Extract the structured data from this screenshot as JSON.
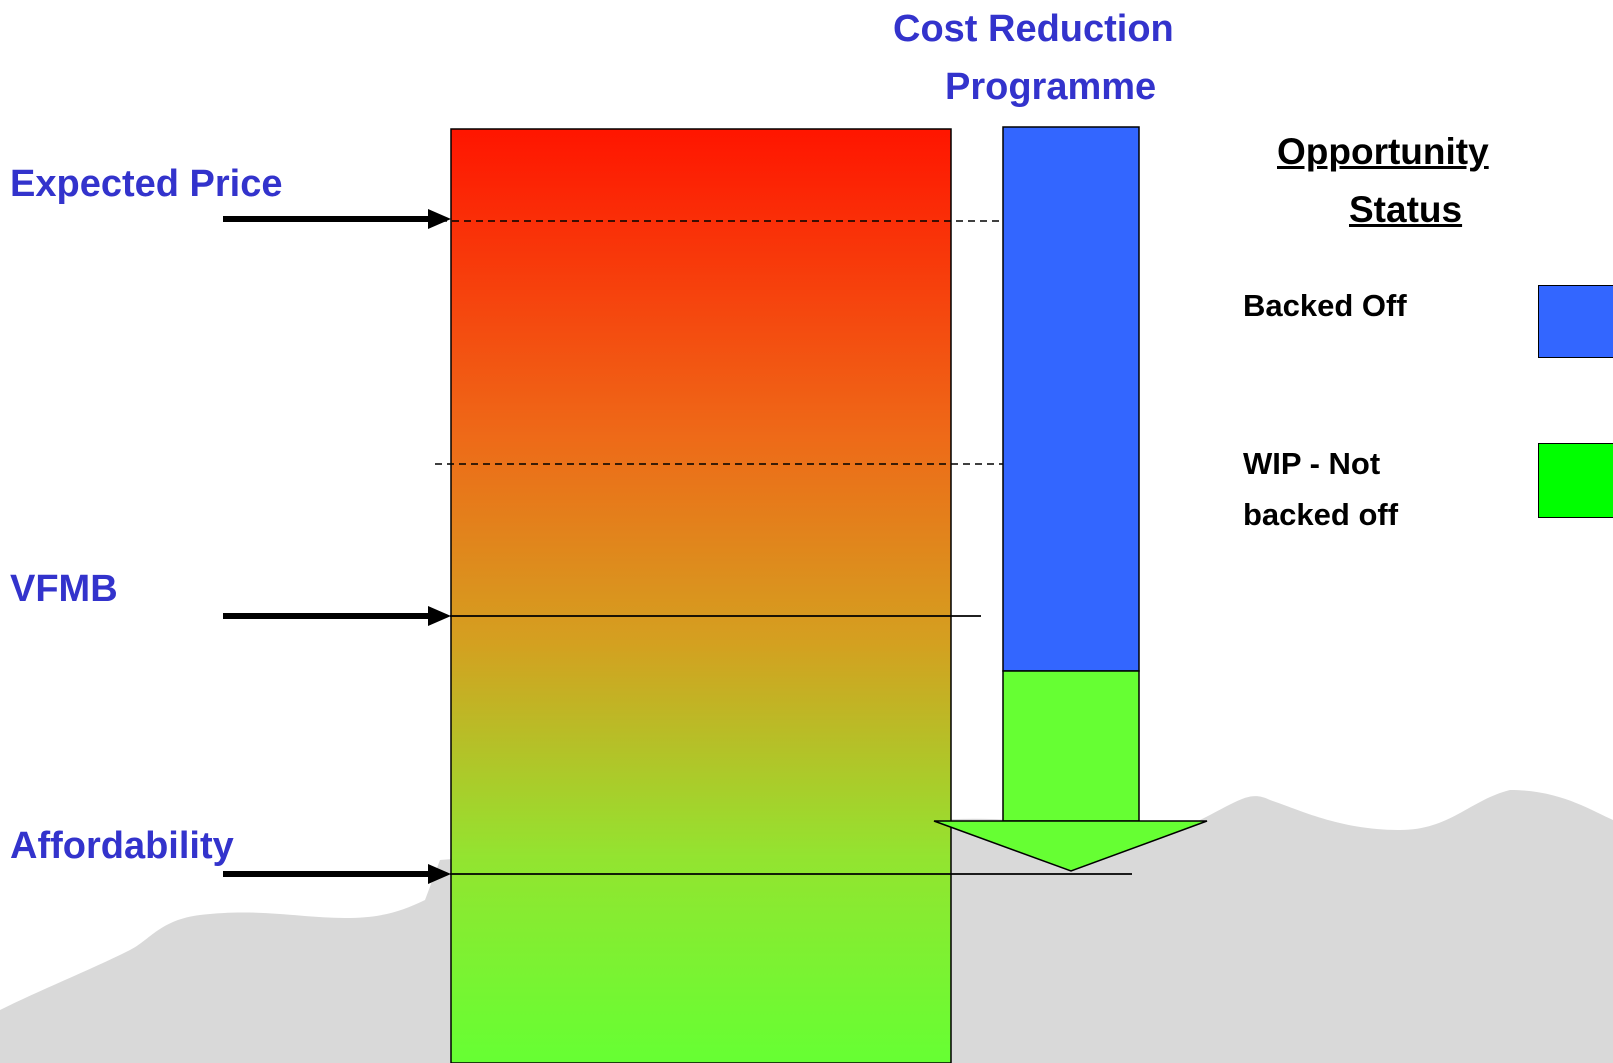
{
  "title": "Cost Reduction Programme",
  "title_line1": "Cost Reduction",
  "title_line2": "Programme",
  "markers": {
    "expected_price": "Expected Price",
    "vfmb": "VFMB",
    "affordability": "Affordability"
  },
  "legend": {
    "title_line1": "Opportunity",
    "title_line2": "Status",
    "items": [
      {
        "label": "Backed Off",
        "color": "#3366ff"
      },
      {
        "label_line1": "WIP - Not",
        "label_line2": "backed off",
        "color": "#00ff00"
      }
    ]
  },
  "colors": {
    "gradient_top": "#ff1500",
    "gradient_mid": "#d4a020",
    "gradient_bottom": "#66ff33",
    "programme_backed_off": "#3366ff",
    "programme_wip": "#66ff33",
    "terrain": "#d9d9d9"
  }
}
